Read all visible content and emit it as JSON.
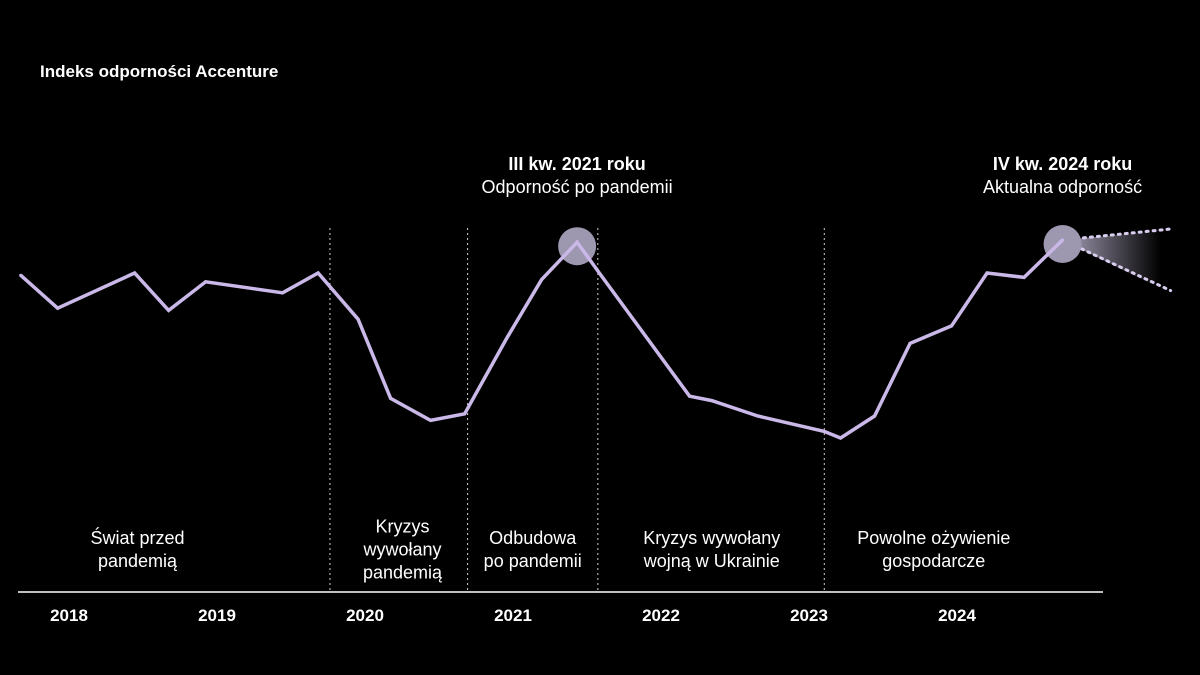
{
  "chart_data": {
    "type": "line",
    "title": "Indeks odporności Accenture",
    "xlabel": "",
    "ylabel": "",
    "xlim": [
      2018,
      2025.5
    ],
    "ylim": [
      0,
      110
    ],
    "grid": false,
    "tick_labels": [
      "2018",
      "2019",
      "2020",
      "2021",
      "2022",
      "2023",
      "2024"
    ],
    "series": [
      {
        "color": "#c9b8e8",
        "x": [
          2018.18,
          2018.43,
          2018.95,
          2019.18,
          2019.43,
          2019.95,
          2020.19,
          2020.46,
          2020.68,
          2020.95,
          2021.18,
          2021.47,
          2021.7,
          2021.94,
          2022.09,
          2022.7,
          2022.85,
          2023.16,
          2023.61,
          2023.72,
          2023.95,
          2024.19,
          2024.47,
          2024.71,
          2024.96,
          2025.22
        ],
        "y": [
          84,
          69,
          85,
          68,
          81,
          76,
          85,
          64,
          28,
          18,
          21,
          56,
          82,
          99,
          85,
          29,
          27,
          20,
          13,
          10,
          20,
          53,
          61,
          85,
          83,
          100
        ]
      }
    ],
    "forecast_cone": {
      "from_x": 2025.22,
      "to_x": 2025.95,
      "upper_y": 105,
      "lower_y": 77,
      "style": "dotted"
    },
    "dividers": [
      2020.27,
      2021.2,
      2022.08,
      2023.61
    ],
    "regions": [
      {
        "label": "Świat przed\npandemią",
        "x": 2018.97
      },
      {
        "label": "Kryzys\nwywołany\npandemią",
        "x": 2020.76
      },
      {
        "label": "Odbudowa\npo pandemii",
        "x": 2021.64
      },
      {
        "label": "Kryzys wywołany\nwojną w Ukrainie",
        "x": 2022.85
      },
      {
        "label": "Powolne ożywienie\ngospodarcze",
        "x": 2024.35
      }
    ],
    "annotations": [
      {
        "bold": "III kw. 2021 roku",
        "text": "Odporność po pandemii",
        "x": 2021.94
      },
      {
        "bold": "IV kw. 2024 roku",
        "text": "Aktualna odporność",
        "x": 2025.22
      }
    ],
    "highlight_color": "#9e97b0",
    "divider_color": "#cfcfcf"
  }
}
